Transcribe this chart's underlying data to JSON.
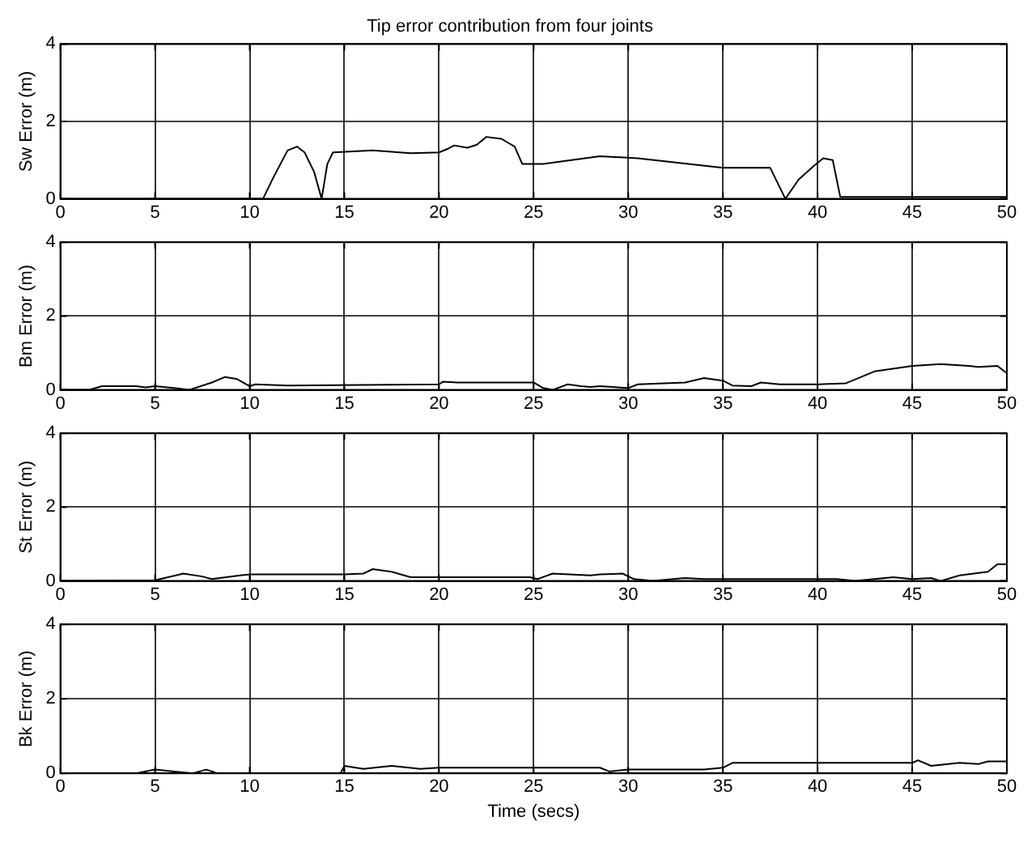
{
  "chart_data": [
    {
      "type": "line",
      "title": "Tip error contribution from four joints",
      "ylabel": "Sw Error (m)",
      "xlim": [
        0,
        50
      ],
      "xticks": [
        0,
        5,
        10,
        15,
        20,
        25,
        30,
        35,
        40,
        45,
        50
      ],
      "ylim": [
        0,
        4
      ],
      "yticks": [
        0,
        2,
        4
      ],
      "grid": true,
      "legend": false,
      "marker": "none",
      "line_style": "solid",
      "series": [
        {
          "color": "#000000",
          "x": [
            0,
            10.7,
            11.3,
            12,
            12.5,
            12.9,
            13.4,
            13.8,
            14.1,
            14.4,
            16.5,
            18.5,
            20,
            20.5,
            20.8,
            21.5,
            22,
            22.5,
            23.3,
            24,
            24.4,
            25.5,
            28.5,
            30.5,
            35,
            37.5,
            38.3,
            39,
            39.8,
            40.3,
            40.8,
            41.2,
            50
          ],
          "values": [
            0,
            0,
            0.6,
            1.25,
            1.35,
            1.2,
            0.7,
            0,
            0.9,
            1.2,
            1.25,
            1.18,
            1.2,
            1.3,
            1.38,
            1.32,
            1.4,
            1.6,
            1.55,
            1.35,
            0.9,
            0.9,
            1.1,
            1.05,
            0.8,
            0.8,
            0,
            0.5,
            0.85,
            1.05,
            1.0,
            0.05,
            0.05
          ]
        }
      ]
    },
    {
      "type": "line",
      "ylabel": "Bm Error (m)",
      "xlim": [
        0,
        50
      ],
      "xticks": [
        0,
        5,
        10,
        15,
        20,
        25,
        30,
        35,
        40,
        45,
        50
      ],
      "ylim": [
        0,
        4
      ],
      "yticks": [
        0,
        2,
        4
      ],
      "grid": true,
      "legend": false,
      "marker": "none",
      "line_style": "solid",
      "series": [
        {
          "color": "#000000",
          "x": [
            0,
            1.5,
            2.2,
            4,
            4.5,
            5,
            6,
            6.8,
            8,
            8.7,
            9.3,
            10,
            10.3,
            12,
            20,
            20.2,
            21,
            25,
            25.5,
            26,
            26.8,
            27.5,
            28,
            28.5,
            30,
            30.5,
            33,
            34,
            35,
            35.5,
            36.5,
            37,
            38,
            40,
            41.5,
            43,
            45,
            46.5,
            48,
            48.5,
            49.5,
            50
          ],
          "values": [
            0,
            0,
            0.1,
            0.1,
            0.07,
            0.1,
            0.05,
            0,
            0.2,
            0.35,
            0.3,
            0.1,
            0.15,
            0.12,
            0.15,
            0.22,
            0.2,
            0.2,
            0.05,
            0,
            0.15,
            0.1,
            0.08,
            0.1,
            0.05,
            0.15,
            0.2,
            0.32,
            0.25,
            0.12,
            0.1,
            0.2,
            0.15,
            0.15,
            0.18,
            0.5,
            0.65,
            0.7,
            0.65,
            0.62,
            0.65,
            0.45
          ]
        }
      ]
    },
    {
      "type": "line",
      "ylabel": "St Error (m)",
      "xlim": [
        0,
        50
      ],
      "xticks": [
        0,
        5,
        10,
        15,
        20,
        25,
        30,
        35,
        40,
        45,
        50
      ],
      "ylim": [
        0,
        4
      ],
      "yticks": [
        0,
        2,
        4
      ],
      "grid": true,
      "legend": false,
      "marker": "none",
      "line_style": "solid",
      "series": [
        {
          "color": "#000000",
          "x": [
            0,
            5,
            6.5,
            7.5,
            8,
            9.5,
            10,
            15,
            16,
            16.5,
            17.5,
            18.5,
            19,
            24.8,
            25.2,
            26,
            28,
            28.5,
            29.7,
            30.3,
            31.3,
            33,
            34,
            35,
            41,
            42,
            44,
            45,
            46,
            46.5,
            47.5,
            49,
            49.5,
            50
          ],
          "values": [
            0,
            0.02,
            0.2,
            0.12,
            0.05,
            0.15,
            0.18,
            0.18,
            0.2,
            0.32,
            0.25,
            0.1,
            0.1,
            0.1,
            0.05,
            0.2,
            0.15,
            0.18,
            0.2,
            0.05,
            0,
            0.08,
            0.05,
            0.05,
            0.05,
            0,
            0.1,
            0.05,
            0.08,
            0,
            0.15,
            0.25,
            0.45,
            0.45
          ]
        }
      ]
    },
    {
      "type": "line",
      "ylabel": "Bk Error (m)",
      "xlabel": "Time (secs)",
      "xlim": [
        0,
        50
      ],
      "xticks": [
        0,
        5,
        10,
        15,
        20,
        25,
        30,
        35,
        40,
        45,
        50
      ],
      "ylim": [
        0,
        4
      ],
      "yticks": [
        0,
        2,
        4
      ],
      "grid": true,
      "legend": false,
      "marker": "none",
      "line_style": "solid",
      "series": [
        {
          "color": "#000000",
          "x": [
            0,
            4,
            5,
            6,
            7,
            7.7,
            8.3,
            9,
            14.8,
            15,
            16,
            17.5,
            19,
            20,
            28.5,
            29,
            30,
            34,
            35,
            35.5,
            45,
            45.3,
            46,
            47.5,
            48.5,
            49,
            50
          ],
          "values": [
            0,
            0,
            0.1,
            0.05,
            0,
            0.1,
            0,
            0,
            0,
            0.2,
            0.12,
            0.2,
            0.12,
            0.15,
            0.15,
            0.05,
            0.1,
            0.1,
            0.15,
            0.28,
            0.28,
            0.35,
            0.2,
            0.28,
            0.25,
            0.32,
            0.32
          ]
        }
      ]
    }
  ]
}
